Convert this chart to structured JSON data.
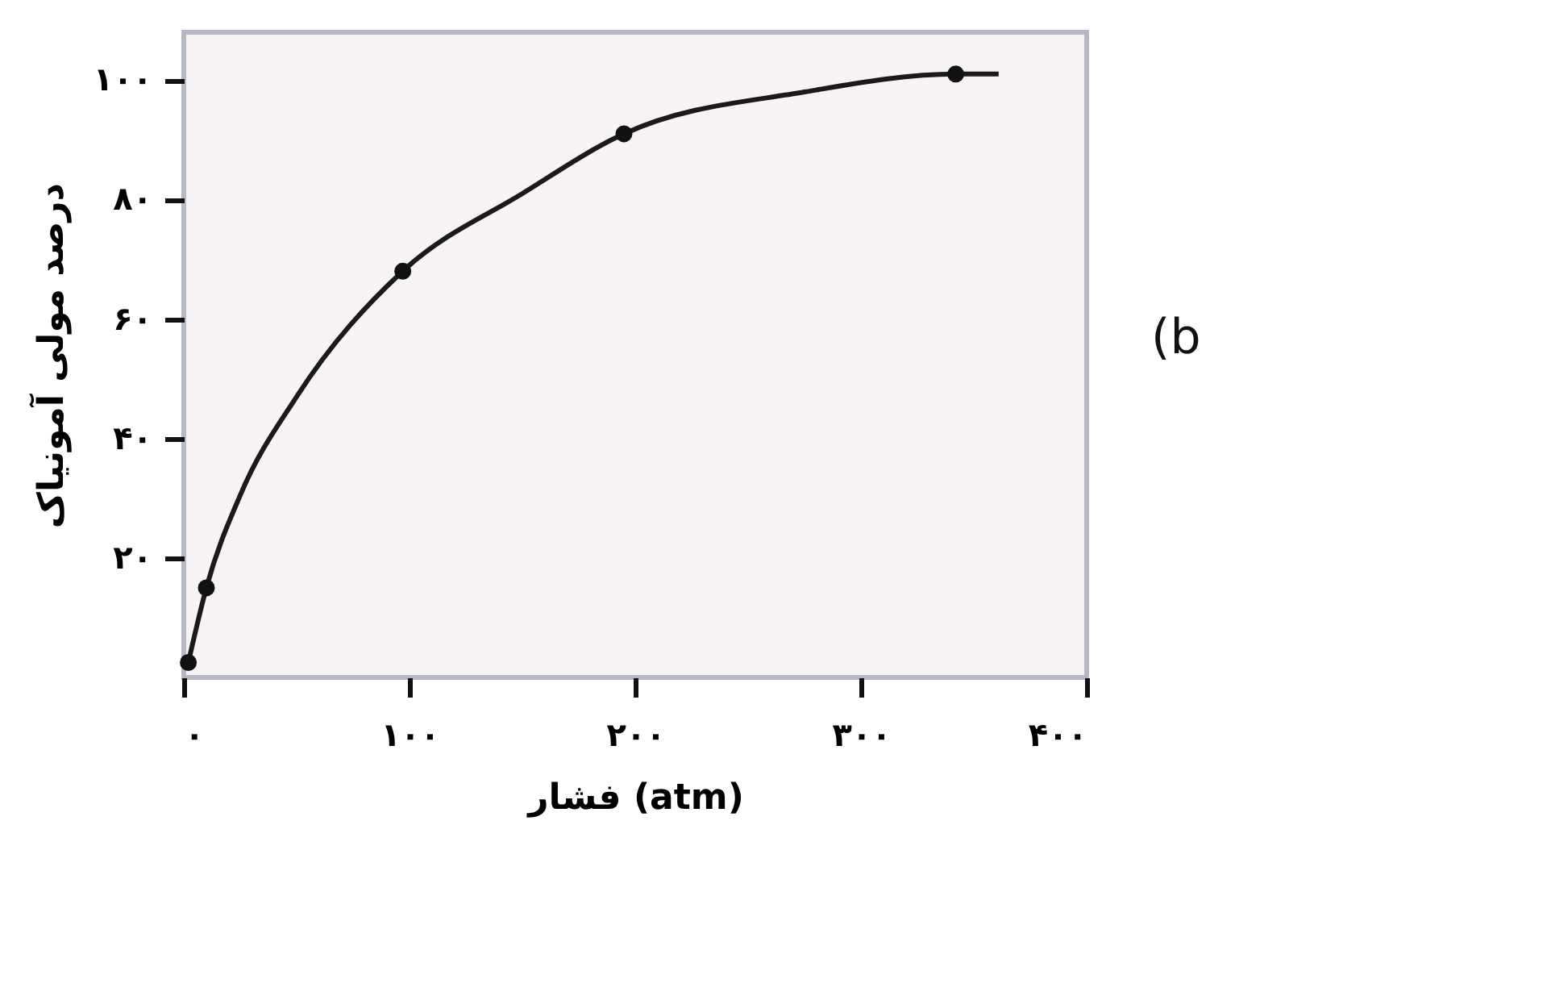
{
  "chart_data": {
    "type": "line",
    "xlabel": "فشار (atm)",
    "ylabel": "درصد مولی آمونیاک",
    "annotations": [
      "(b"
    ],
    "series": [
      {
        "color": "#1a1a1a",
        "marker": "none",
        "x": [
          2,
          10,
          25,
          50,
          97,
          150,
          195,
          275,
          342,
          361
        ],
        "values": [
          2.5,
          15,
          30.5,
          47,
          68,
          81,
          91,
          98,
          101,
          101
        ]
      },
      {
        "type": "scatter",
        "color": "#111111",
        "marker": "circle",
        "x": [
          2,
          10,
          97,
          195,
          342
        ],
        "values": [
          2.5,
          15,
          68,
          91,
          101
        ]
      }
    ],
    "xlim": [
      0,
      400
    ],
    "ylim": [
      0,
      108
    ],
    "xticks": [
      {
        "value": 0,
        "label": "۰"
      },
      {
        "value": 100,
        "label": "۱۰۰"
      },
      {
        "value": 200,
        "label": "۲۰۰"
      },
      {
        "value": 300,
        "label": "۳۰۰"
      },
      {
        "value": 400,
        "label": "۴۰۰"
      }
    ],
    "yticks": [
      {
        "value": 20,
        "label": "۲۰"
      },
      {
        "value": 40,
        "label": "۴۰"
      },
      {
        "value": 60,
        "label": "۶۰"
      },
      {
        "value": 80,
        "label": "۸۰"
      },
      {
        "value": 100,
        "label": "۱۰۰"
      }
    ],
    "grid": false
  }
}
